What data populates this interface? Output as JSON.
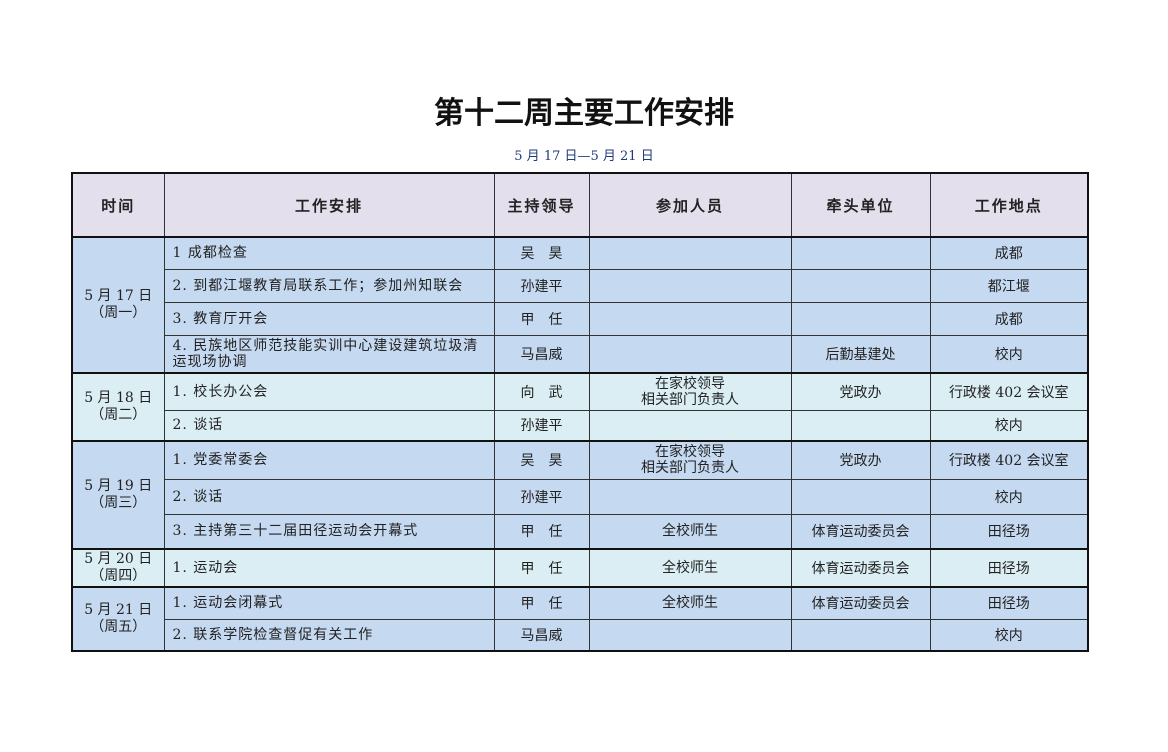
{
  "title": "第十二周主要工作安排",
  "subtitle": "5 月 17 日—5 月 21 日",
  "headers": [
    "时间",
    "工作安排",
    "主持领导",
    "参加人员",
    "牵头单位",
    "工作地点"
  ],
  "days": [
    {
      "date": "5 月 17 日",
      "weekday": "（周一）",
      "rows": [
        {
          "task": "1 成都检查",
          "leader": "吴　昊",
          "attendees": "",
          "organizer": "",
          "location": "成都"
        },
        {
          "task": "2. 到都江堰教育局联系工作；参加州知联会",
          "leader": "孙建平",
          "attendees": "",
          "organizer": "",
          "location": "都江堰"
        },
        {
          "task": "3. 教育厅开会",
          "leader": "甲　任",
          "attendees": "",
          "organizer": "",
          "location": "成都"
        },
        {
          "task": "4. 民族地区师范技能实训中心建设建筑垃圾清运现场协调",
          "leader": "马昌威",
          "attendees": "",
          "organizer": "后勤基建处",
          "location": "校内"
        }
      ]
    },
    {
      "date": "5 月 18 日",
      "weekday": "（周二）",
      "rows": [
        {
          "task": "1. 校长办公会",
          "leader": "向　武",
          "attendees": "在家校领导 相关部门负责人",
          "organizer": "党政办",
          "location": "行政楼 402 会议室"
        },
        {
          "task": "2. 谈话",
          "leader": "孙建平",
          "attendees": "",
          "organizer": "",
          "location": "校内"
        }
      ]
    },
    {
      "date": "5 月 19 日",
      "weekday": "（周三）",
      "rows": [
        {
          "task": "1. 党委常委会",
          "leader": "吴　昊",
          "attendees": "在家校领导 相关部门负责人",
          "organizer": "党政办",
          "location": "行政楼 402 会议室"
        },
        {
          "task": "2. 谈话",
          "leader": "孙建平",
          "attendees": "",
          "organizer": "",
          "location": "校内"
        },
        {
          "task": "3. 主持第三十二届田径运动会开幕式",
          "leader": "甲　任",
          "attendees": "全校师生",
          "organizer": "体育运动委员会",
          "location": "田径场"
        }
      ]
    },
    {
      "date": "5 月 20 日",
      "weekday": "（周四）",
      "rows": [
        {
          "task": "1. 运动会",
          "leader": "甲　任",
          "attendees": "全校师生",
          "organizer": "体育运动委员会",
          "location": "田径场"
        }
      ]
    },
    {
      "date": "5 月 21 日",
      "weekday": "（周五）",
      "rows": [
        {
          "task": "1. 运动会闭幕式",
          "leader": "甲　任",
          "attendees": "全校师生",
          "organizer": "体育运动委员会",
          "location": "田径场"
        },
        {
          "task": "2. 联系学院检查督促有关工作",
          "leader": "马昌威",
          "attendees": "",
          "organizer": "",
          "location": "校内"
        }
      ]
    }
  ],
  "colors": {
    "header_bg": "#E4DFEC",
    "blue_bg": "#C5D9F1",
    "light_bg": "#DAEEF3"
  }
}
